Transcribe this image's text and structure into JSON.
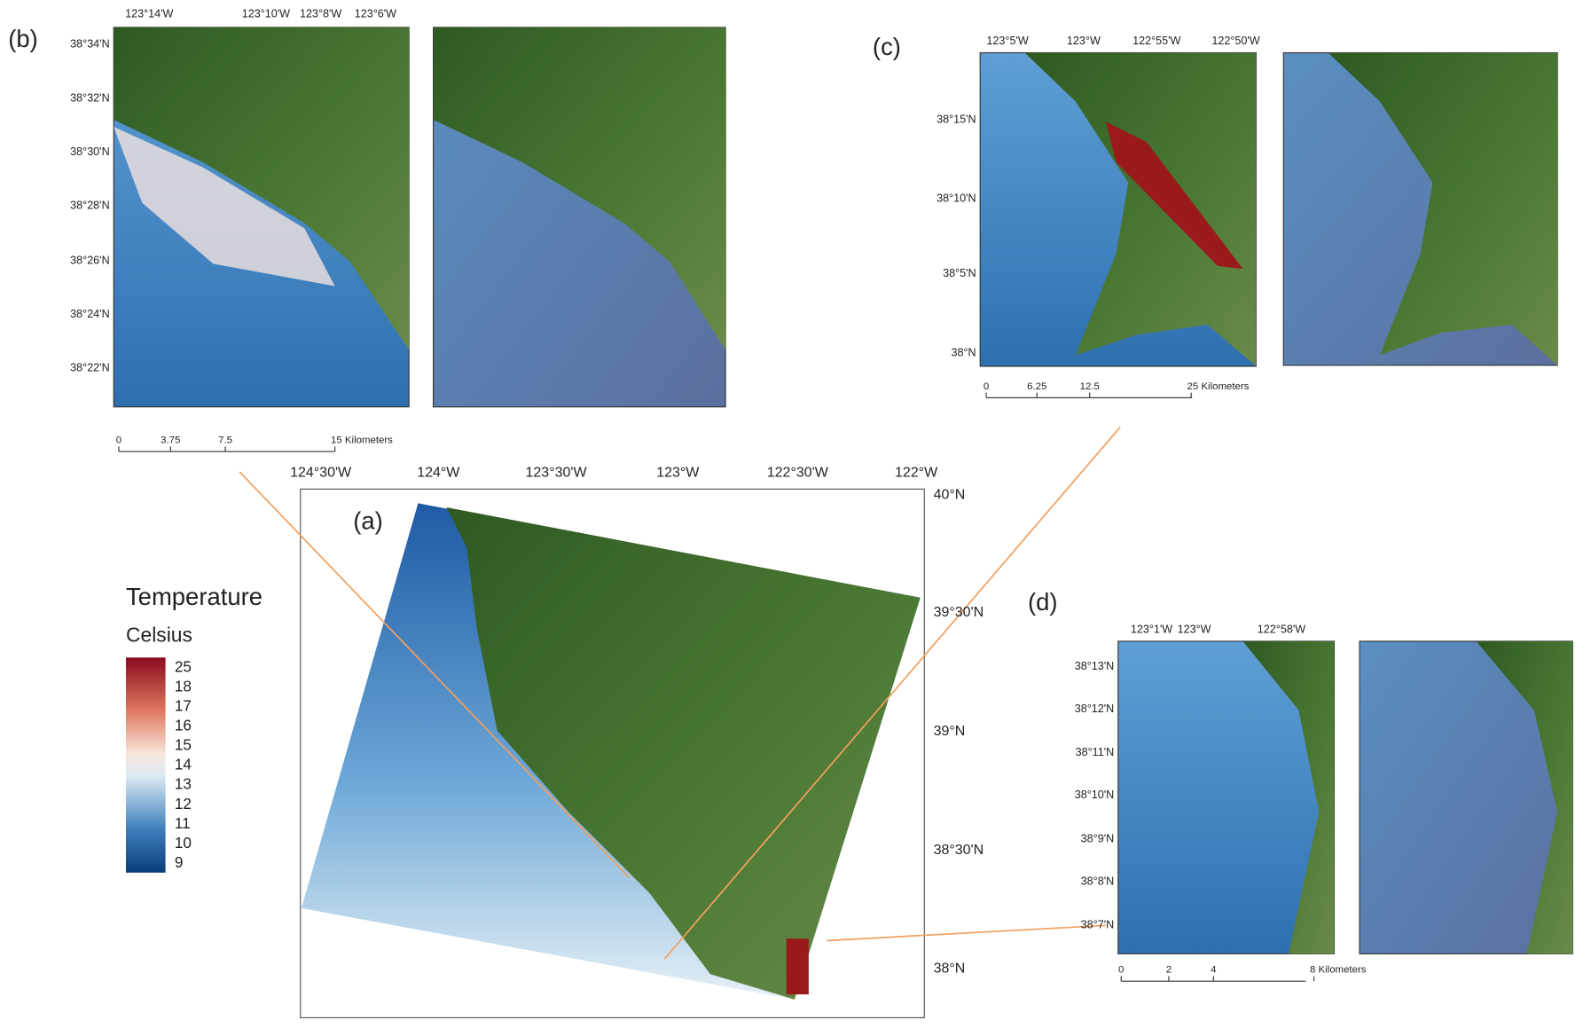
{
  "panels": {
    "a": {
      "label": "(a)",
      "x_ticks": [
        "124°30'W",
        "124°W",
        "123°30'W",
        "123°W",
        "122°30'W",
        "122°W"
      ],
      "y_ticks": [
        "40°N",
        "39°30'N",
        "39°N",
        "38°30'N",
        "38°N"
      ]
    },
    "b": {
      "label": "(b)",
      "x_ticks": [
        "123°14'W",
        "123°10'W",
        "123°8'W",
        "123°6'W"
      ],
      "y_ticks": [
        "38°34'N",
        "38°32'N",
        "38°30'N",
        "38°28'N",
        "38°26'N",
        "38°24'N",
        "38°22'N"
      ],
      "scale_bar": [
        "0",
        "3.75",
        "7.5",
        "15 Kilometers"
      ]
    },
    "c": {
      "label": "(c)",
      "x_ticks": [
        "123°5'W",
        "123°W",
        "122°55'W",
        "122°50'W"
      ],
      "y_ticks": [
        "38°15'N",
        "38°10'N",
        "38°5'N",
        "38°N"
      ],
      "scale_bar": [
        "0",
        "6.25",
        "12.5",
        "25 Kilometers"
      ]
    },
    "d": {
      "label": "(d)",
      "x_ticks": [
        "123°1'W",
        "123°W",
        "122°58'W"
      ],
      "y_ticks": [
        "38°13'N",
        "38°12'N",
        "38°11'N",
        "38°10'N",
        "38°9'N",
        "38°8'N",
        "38°7'N"
      ],
      "scale_bar": [
        "0",
        "2",
        "4",
        "8 Kilometers"
      ]
    }
  },
  "legend": {
    "title": "Temperature",
    "unit": "Celsius",
    "labels": [
      25,
      18,
      17,
      16,
      15,
      14,
      13,
      12,
      11,
      10,
      9
    ]
  }
}
